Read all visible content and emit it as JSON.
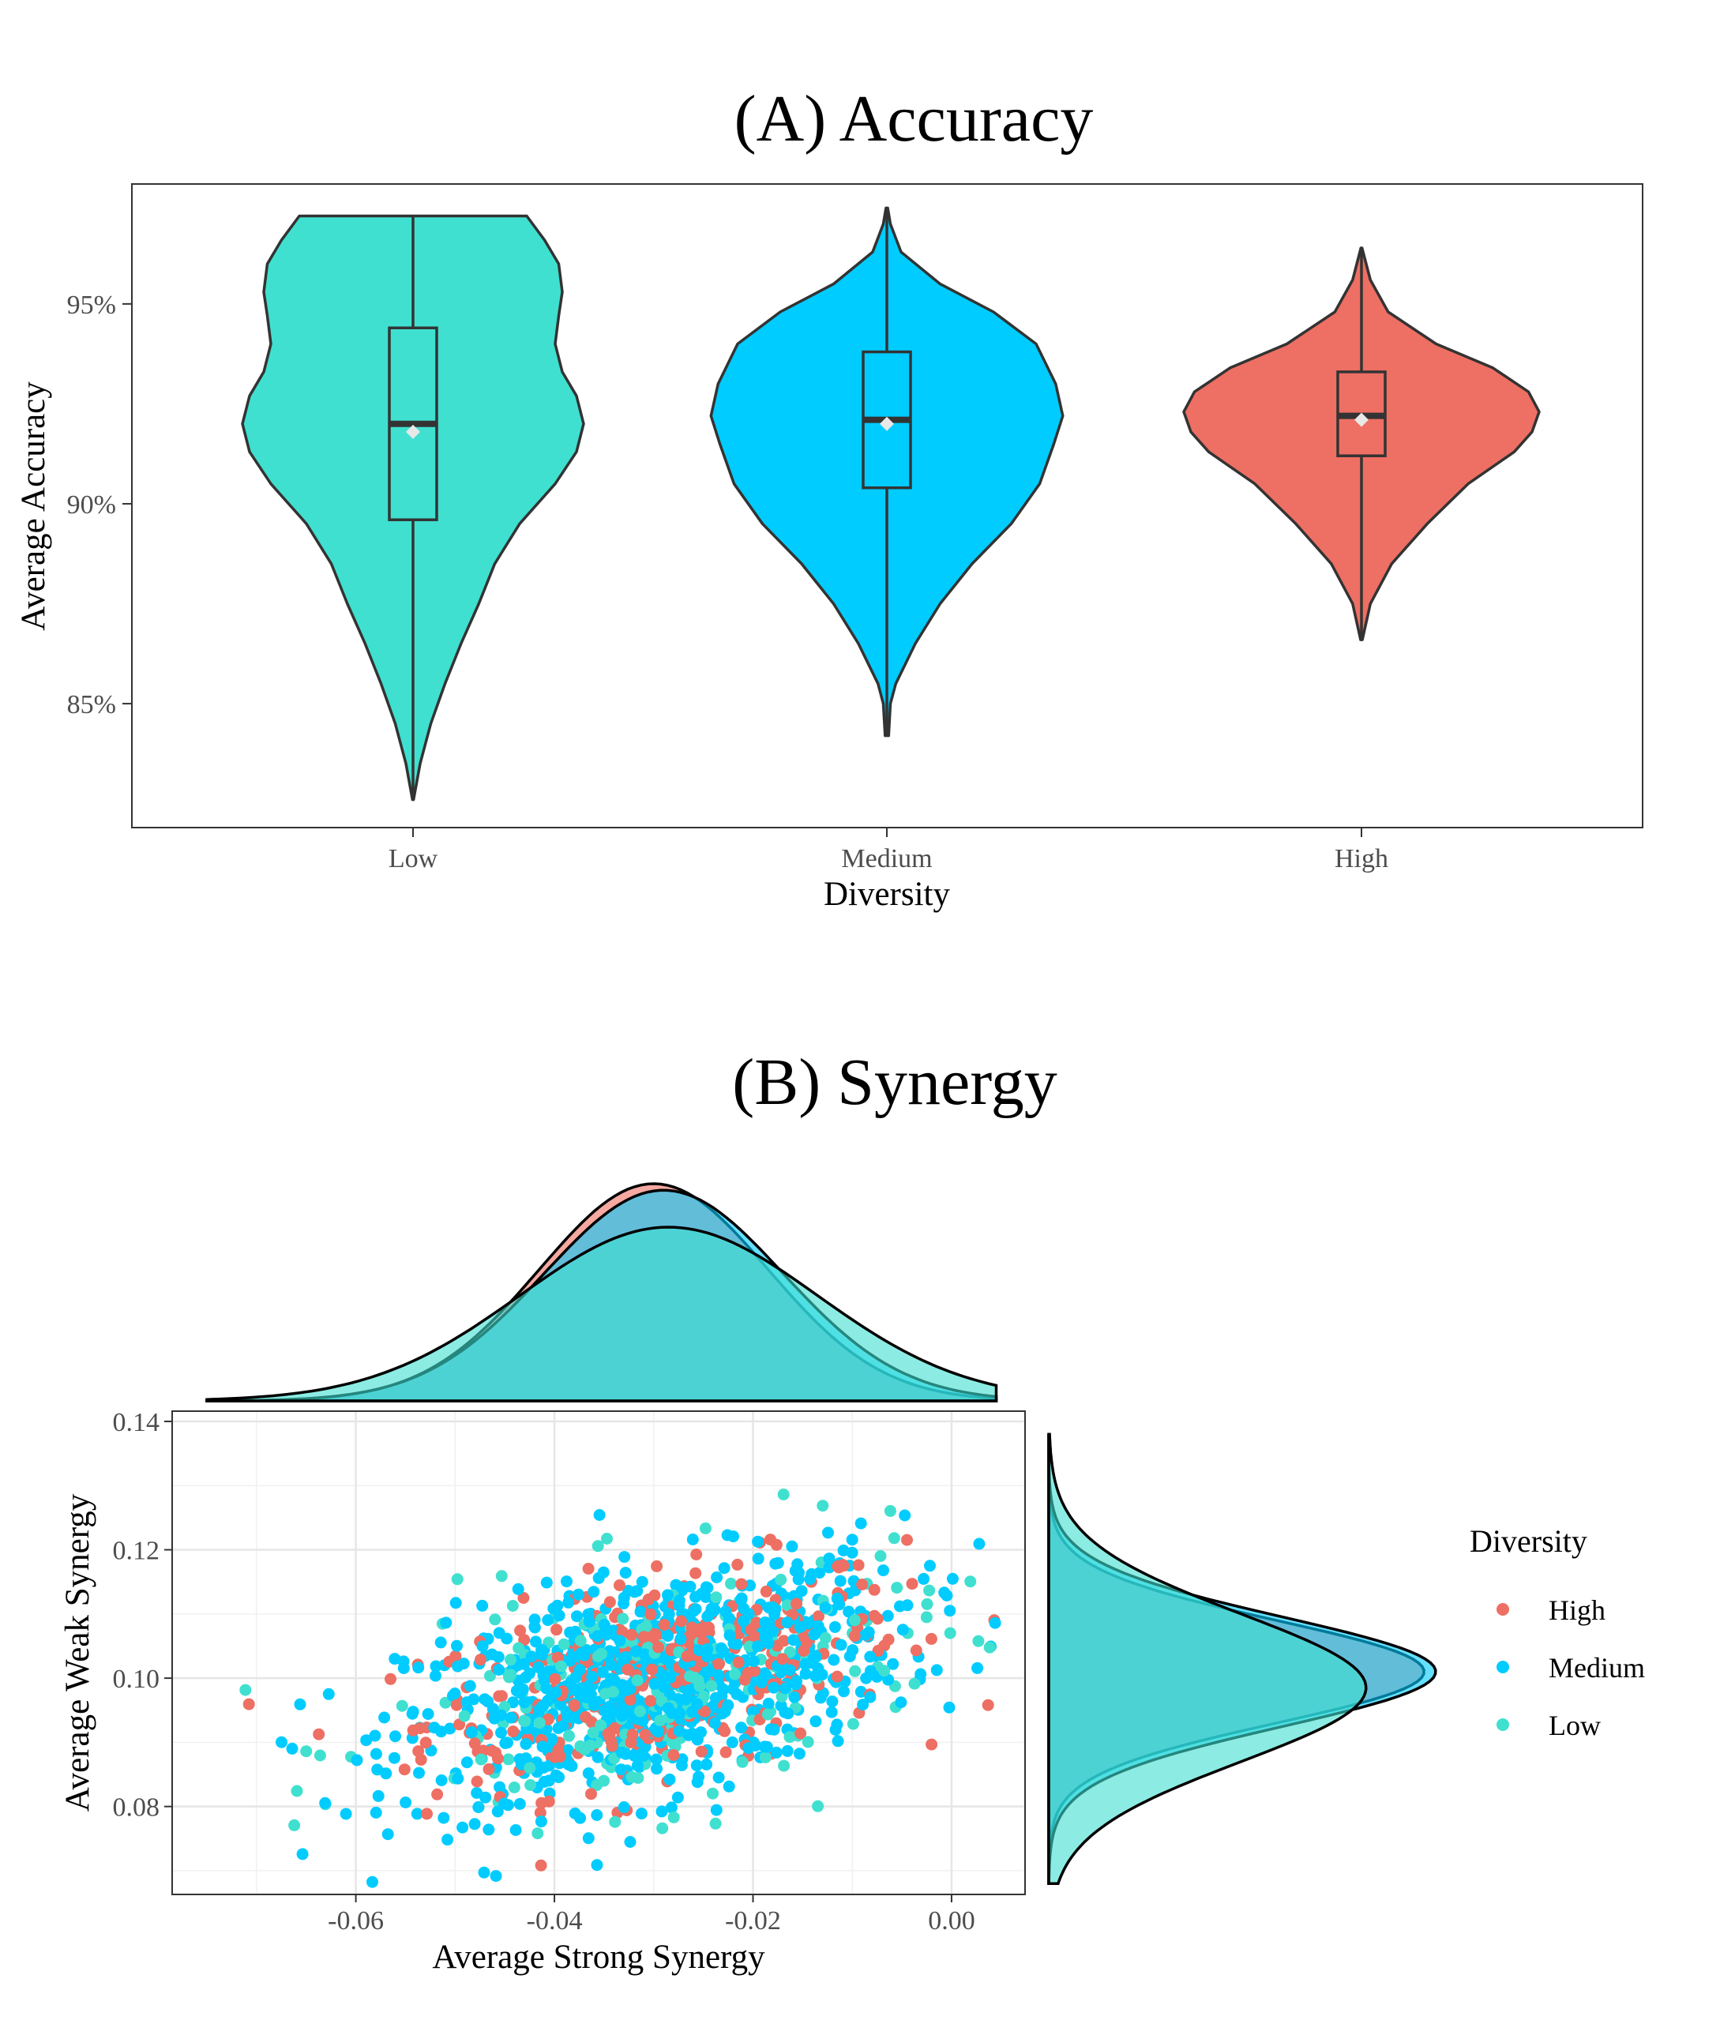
{
  "chart_data": [
    {
      "panel": "A",
      "type": "violin",
      "title": "(A) Accuracy",
      "xlabel": "Diversity",
      "ylabel": "Average Accuracy",
      "ylim": [
        81.9,
        98.0
      ],
      "yticks": [
        85,
        90,
        95
      ],
      "ytick_labels": [
        "85%",
        "90%",
        "95%"
      ],
      "categories": [
        "Low",
        "Medium",
        "High"
      ],
      "colors": [
        "#40E0D0",
        "#00CCFF",
        "#EE6F63"
      ],
      "groups": [
        {
          "name": "Low",
          "min": 82.6,
          "q1": 89.6,
          "median": 92.0,
          "q3": 94.4,
          "max": 97.2,
          "mean": 91.8,
          "density": [
            [
              82.6,
              0.003
            ],
            [
              83.5,
              0.04
            ],
            [
              84.5,
              0.1
            ],
            [
              85.5,
              0.18
            ],
            [
              86.5,
              0.27
            ],
            [
              87.5,
              0.37
            ],
            [
              88.5,
              0.46
            ],
            [
              89.5,
              0.6
            ],
            [
              90.5,
              0.8
            ],
            [
              91.3,
              0.92
            ],
            [
              92.0,
              0.96
            ],
            [
              92.7,
              0.92
            ],
            [
              93.3,
              0.84
            ],
            [
              94.0,
              0.8
            ],
            [
              94.7,
              0.82
            ],
            [
              95.3,
              0.84
            ],
            [
              96.0,
              0.82
            ],
            [
              96.6,
              0.74
            ],
            [
              97.2,
              0.64
            ]
          ]
        },
        {
          "name": "Medium",
          "min": 84.2,
          "q1": 90.4,
          "median": 92.1,
          "q3": 93.8,
          "max": 97.4,
          "mean": 92.0,
          "density": [
            [
              84.2,
              0.01
            ],
            [
              85.0,
              0.02
            ],
            [
              85.5,
              0.05
            ],
            [
              86.5,
              0.16
            ],
            [
              87.5,
              0.3
            ],
            [
              88.5,
              0.48
            ],
            [
              89.5,
              0.7
            ],
            [
              90.5,
              0.86
            ],
            [
              91.5,
              0.94
            ],
            [
              92.2,
              0.99
            ],
            [
              93.0,
              0.95
            ],
            [
              94.0,
              0.84
            ],
            [
              94.8,
              0.6
            ],
            [
              95.5,
              0.3
            ],
            [
              96.3,
              0.08
            ],
            [
              97.0,
              0.02
            ],
            [
              97.4,
              0.005
            ]
          ]
        },
        {
          "name": "High",
          "min": 86.6,
          "q1": 91.2,
          "median": 92.2,
          "q3": 93.3,
          "max": 96.4,
          "mean": 92.1,
          "density": [
            [
              86.6,
              0.005
            ],
            [
              87.5,
              0.05
            ],
            [
              88.5,
              0.17
            ],
            [
              89.5,
              0.37
            ],
            [
              90.5,
              0.6
            ],
            [
              91.3,
              0.86
            ],
            [
              91.8,
              0.96
            ],
            [
              92.3,
              1.0
            ],
            [
              92.8,
              0.94
            ],
            [
              93.4,
              0.74
            ],
            [
              94.0,
              0.42
            ],
            [
              94.8,
              0.15
            ],
            [
              95.6,
              0.05
            ],
            [
              96.4,
              0.003
            ]
          ]
        }
      ]
    },
    {
      "panel": "B",
      "type": "scatter",
      "title": "(B) Synergy",
      "xlabel": "Average Strong Synergy",
      "ylabel": "Average Weak Synergy",
      "xlim": [
        -0.0785,
        0.0074
      ],
      "ylim": [
        0.0663,
        0.1416
      ],
      "xticks": [
        -0.06,
        -0.04,
        -0.02,
        0.0
      ],
      "xtick_labels": [
        "-0.06",
        "-0.04",
        "-0.02",
        "0.00"
      ],
      "yticks": [
        0.08,
        0.1,
        0.12,
        0.14
      ],
      "ytick_labels": [
        "0.08",
        "0.10",
        "0.12",
        "0.14"
      ],
      "grid": true,
      "legend": {
        "title": "Diversity",
        "position": "right"
      },
      "series": [
        {
          "name": "High",
          "color": "#EE6F63",
          "center": [
            -0.029,
            0.1005
          ],
          "sd": [
            0.012,
            0.0085
          ],
          "rho": 0.45,
          "n": 360,
          "marginal_x": {
            "mean": -0.03,
            "sd": 0.0115
          },
          "marginal_y": {
            "mean": 0.101,
            "sd": 0.008
          }
        },
        {
          "name": "Medium",
          "color": "#00CCFF",
          "center": [
            -0.03,
            0.0995
          ],
          "sd": [
            0.0125,
            0.0095
          ],
          "rho": 0.45,
          "n": 850,
          "marginal_x": {
            "mean": -0.029,
            "sd": 0.012
          },
          "marginal_y": {
            "mean": 0.101,
            "sd": 0.0085
          }
        },
        {
          "name": "Low",
          "color": "#40E0D0",
          "center": [
            -0.029,
            0.0985
          ],
          "sd": [
            0.014,
            0.01
          ],
          "rho": 0.4,
          "n": 220,
          "marginal_x": {
            "mean": -0.0285,
            "sd": 0.015
          },
          "marginal_y": {
            "mean": 0.0985,
            "sd": 0.0115
          }
        }
      ]
    }
  ]
}
